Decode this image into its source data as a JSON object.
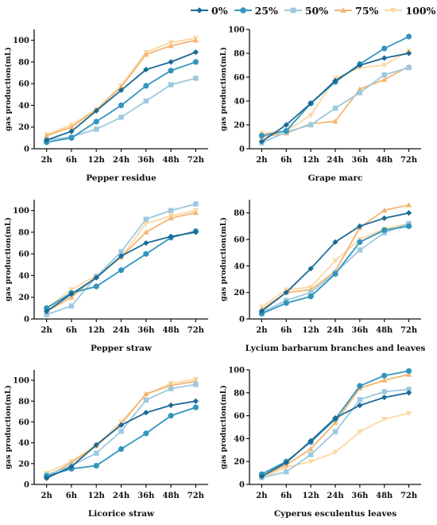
{
  "chart_data": {
    "type": "line",
    "legend": {
      "placement": "top",
      "entries": [
        {
          "label": "0%",
          "color": "#1c6a96",
          "marker": "diamond"
        },
        {
          "label": "25%",
          "color": "#3196bd",
          "marker": "circle"
        },
        {
          "label": "50%",
          "color": "#9cc9df",
          "marker": "square"
        },
        {
          "label": "75%",
          "color": "#f4b56f",
          "marker": "triangle"
        },
        {
          "label": "100%",
          "color": "#fbd8a3",
          "marker": "triangle-down"
        }
      ]
    },
    "categories": [
      "2h",
      "6h",
      "12h",
      "24h",
      "36h",
      "48h",
      "72h"
    ],
    "panels": [
      {
        "xlabel": "Pepper residue",
        "ylabel": "gas production(mL)",
        "ylim": [
          0,
          110
        ],
        "yticks": [
          0,
          20,
          40,
          60,
          80,
          100
        ],
        "series": [
          {
            "name": "0%",
            "values": [
              8,
              16,
              35,
              54,
              73,
              80,
              89
            ]
          },
          {
            "name": "25%",
            "values": [
              6,
              10,
              25,
              40,
              58,
              72,
              80
            ]
          },
          {
            "name": "50%",
            "values": [
              8,
              11,
              18,
              29,
              44,
              59,
              65
            ]
          },
          {
            "name": "75%",
            "values": [
              12,
              20,
              36,
              57,
              87,
              95,
              100
            ]
          },
          {
            "name": "100%",
            "values": [
              13,
              22,
              36,
              58,
              89,
              98,
              102
            ]
          }
        ]
      },
      {
        "xlabel": "Grape marc",
        "ylabel": "gas production(mL)",
        "ylim": [
          0,
          100
        ],
        "yticks": [
          0,
          20,
          40,
          60,
          80,
          100
        ],
        "series": [
          {
            "name": "0%",
            "values": [
              6,
              20,
              38,
              57,
              70,
              76,
              80
            ]
          },
          {
            "name": "25%",
            "values": [
              11,
              15,
              38,
              56,
              71,
              84,
              94
            ]
          },
          {
            "name": "50%",
            "values": [
              5,
              14,
              20,
              34,
              47,
              62,
              68
            ]
          },
          {
            "name": "75%",
            "values": [
              10,
              13,
              21,
              23,
              50,
              58,
              69
            ]
          },
          {
            "name": "100%",
            "values": [
              13,
              15,
              28,
              59,
              68,
              70,
              82
            ]
          }
        ]
      },
      {
        "xlabel": "Pepper straw",
        "ylabel": "gas production(mL)",
        "ylim": [
          0,
          110
        ],
        "yticks": [
          0,
          20,
          40,
          60,
          80,
          100
        ],
        "series": [
          {
            "name": "0%",
            "values": [
              7,
              23,
              38,
              58,
              70,
              76,
              80
            ]
          },
          {
            "name": "25%",
            "values": [
              10,
              24,
              30,
              45,
              60,
              75,
              81
            ]
          },
          {
            "name": "50%",
            "values": [
              4,
              12,
              39,
              62,
              92,
              100,
              106
            ]
          },
          {
            "name": "75%",
            "values": [
              7,
              20,
              39,
              57,
              80,
              93,
              98
            ]
          },
          {
            "name": "100%",
            "values": [
              10,
              27,
              40,
              57,
              88,
              95,
              100
            ]
          }
        ]
      },
      {
        "xlabel": "Lycium barbarum branches and leaves",
        "ylabel": "gas production(mL)",
        "ylim": [
          0,
          90
        ],
        "yticks": [
          0,
          20,
          40,
          60,
          80
        ],
        "series": [
          {
            "name": "0%",
            "values": [
              6,
              20,
              38,
              58,
              70,
              76,
              80
            ]
          },
          {
            "name": "25%",
            "values": [
              4,
              12,
              17,
              34,
              58,
              67,
              70
            ]
          },
          {
            "name": "50%",
            "values": [
              5,
              14,
              20,
              35,
              52,
              65,
              72
            ]
          },
          {
            "name": "75%",
            "values": [
              7,
              20,
              22,
              36,
              69,
              82,
              86
            ]
          },
          {
            "name": "100%",
            "values": [
              9,
              22,
              24,
              44,
              60,
              68,
              72
            ]
          }
        ]
      },
      {
        "xlabel": "Licorice straw",
        "ylabel": "gas production(mL)",
        "ylim": [
          0,
          110
        ],
        "yticks": [
          0,
          20,
          40,
          60,
          80,
          100
        ],
        "series": [
          {
            "name": "0%",
            "values": [
              6,
              17,
              38,
              57,
              69,
              76,
              80
            ]
          },
          {
            "name": "25%",
            "values": [
              8,
              15,
              18,
              34,
              49,
              66,
              74
            ]
          },
          {
            "name": "50%",
            "values": [
              9,
              18,
              30,
              51,
              81,
              92,
              96
            ]
          },
          {
            "name": "75%",
            "values": [
              7,
              21,
              37,
              58,
              87,
              95,
              99
            ]
          },
          {
            "name": "100%",
            "values": [
              11,
              22,
              38,
              60,
              86,
              97,
              101
            ]
          }
        ]
      },
      {
        "xlabel": "Cyperus esculentus leaves",
        "ylabel": "gas production(mL)",
        "ylim": [
          0,
          100
        ],
        "yticks": [
          0,
          20,
          40,
          60,
          80,
          100
        ],
        "series": [
          {
            "name": "0%",
            "values": [
              7,
              19,
              38,
              58,
              69,
              76,
              80
            ]
          },
          {
            "name": "25%",
            "values": [
              9,
              20,
              37,
              57,
              86,
              95,
              99
            ]
          },
          {
            "name": "50%",
            "values": [
              6,
              11,
              26,
              46,
              74,
              81,
              83
            ]
          },
          {
            "name": "75%",
            "values": [
              7,
              17,
              31,
              54,
              84,
              91,
              96
            ]
          },
          {
            "name": "100%",
            "values": [
              6,
              15,
              20,
              28,
              46,
              57,
              62
            ]
          }
        ]
      }
    ]
  }
}
